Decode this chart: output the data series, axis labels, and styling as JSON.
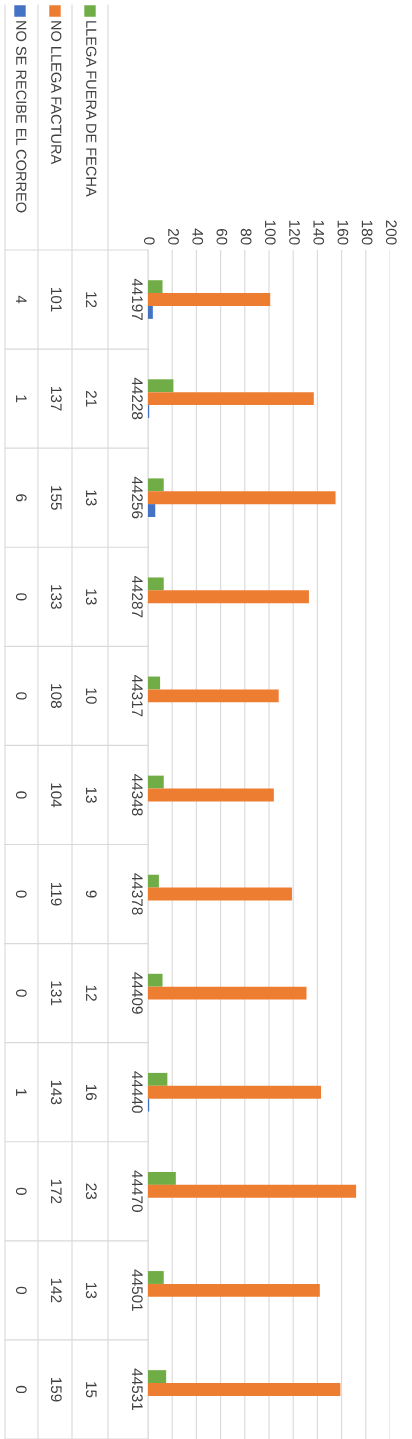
{
  "chart_data": {
    "type": "bar",
    "orientation": "horizontal",
    "categories": [
      "44197",
      "44228",
      "44256",
      "44287",
      "44317",
      "44348",
      "44378",
      "44409",
      "44440",
      "44470",
      "44501",
      "44531"
    ],
    "series": [
      {
        "name": "LLEGA FUERA DE FECHA",
        "color": "#70ad47",
        "values": [
          12,
          21,
          13,
          13,
          10,
          13,
          9,
          12,
          16,
          23,
          13,
          15
        ]
      },
      {
        "name": "NO LLEGA FACTURA",
        "color": "#ed7d31",
        "values": [
          101,
          137,
          155,
          133,
          108,
          104,
          119,
          131,
          143,
          172,
          142,
          159
        ]
      },
      {
        "name": "NO SE RECIBE EL CORREO",
        "color": "#4472c4",
        "values": [
          4,
          1,
          6,
          0,
          0,
          0,
          0,
          0,
          1,
          0,
          0,
          0
        ]
      }
    ],
    "xlim": [
      0,
      200
    ],
    "xticks": [
      0,
      20,
      40,
      60,
      80,
      100,
      120,
      140,
      160,
      180,
      200
    ],
    "grid": "x",
    "data_labels": true,
    "legend": "left"
  }
}
